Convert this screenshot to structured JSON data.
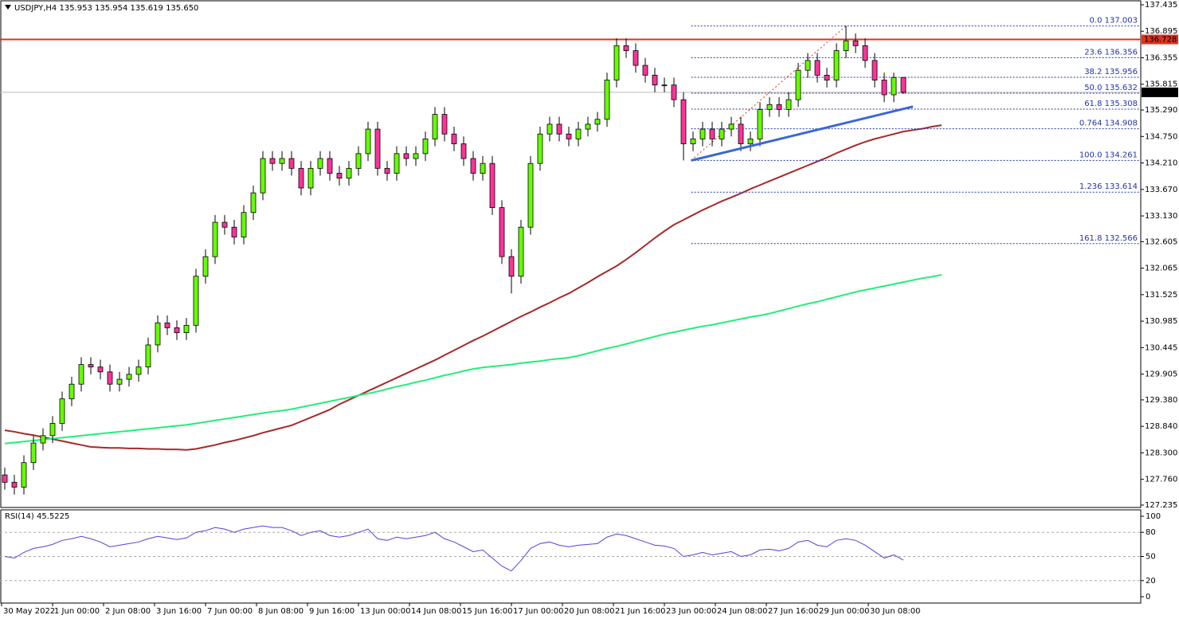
{
  "chart_data": {
    "type": "candlestick",
    "header": "USDJPY,H4  135.953 135.954 135.619 135.650",
    "ylim": [
      127.186,
      137.5
    ],
    "yticks": [
      {
        "value": 137.435,
        "label": "137.435"
      },
      {
        "value": 136.895,
        "label": "136.895"
      },
      {
        "value": 136.355,
        "label": "136.355"
      },
      {
        "value": 135.815,
        "label": "135.815"
      },
      {
        "value": 135.29,
        "label": "135.290"
      },
      {
        "value": 134.75,
        "label": "134.750"
      },
      {
        "value": 134.21,
        "label": "134.210"
      },
      {
        "value": 133.67,
        "label": "133.670"
      },
      {
        "value": 133.13,
        "label": "133.130"
      },
      {
        "value": 132.605,
        "label": "132.605"
      },
      {
        "value": 132.065,
        "label": "132.065"
      },
      {
        "value": 131.525,
        "label": "131.525"
      },
      {
        "value": 130.985,
        "label": "130.985"
      },
      {
        "value": 130.445,
        "label": "130.445"
      },
      {
        "value": 129.905,
        "label": "129.905"
      },
      {
        "value": 129.38,
        "label": "129.380"
      },
      {
        "value": 128.84,
        "label": "128.840"
      },
      {
        "value": 128.3,
        "label": "128.300"
      },
      {
        "value": 127.76,
        "label": "127.760"
      },
      {
        "value": 127.235,
        "label": "127.235"
      }
    ],
    "x_labels": [
      "30 May 2022",
      "1 Jun 00:00",
      "2 Jun 08:00",
      "3 Jun 16:00",
      "7 Jun 00:00",
      "8 Jun 08:00",
      "9 Jun 16:00",
      "13 Jun 00:00",
      "14 Jun 08:00",
      "15 Jun 16:00",
      "17 Jun 00:00",
      "20 Jun 08:00",
      "21 Jun 16:00",
      "23 Jun 00:00",
      "24 Jun 08:00",
      "27 Jun 16:00",
      "29 Jun 00:00",
      "30 Jun 08:00"
    ],
    "up_color": "#66ff00",
    "down_color": "#ff3399",
    "open": [
      127.85,
      127.7,
      127.6,
      128.1,
      128.5,
      128.65,
      128.9,
      129.4,
      129.7,
      130.1,
      130.05,
      129.95,
      129.7,
      129.8,
      129.9,
      130.05,
      130.5,
      130.95,
      130.85,
      130.75,
      130.9,
      131.9,
      132.3,
      133.0,
      132.9,
      132.7,
      133.2,
      133.6,
      134.3,
      134.2,
      134.3,
      134.1,
      133.7,
      134.1,
      134.3,
      134.0,
      133.9,
      134.1,
      134.4,
      134.9,
      134.1,
      134.0,
      134.4,
      134.3,
      134.4,
      134.7,
      135.2,
      134.8,
      134.6,
      134.3,
      134.0,
      134.2,
      133.3,
      132.3,
      131.9,
      132.9,
      134.2,
      134.8,
      135.0,
      134.8,
      134.7,
      134.9,
      135.0,
      135.1,
      135.9,
      136.6,
      136.5,
      136.2,
      136.0,
      135.8,
      135.8,
      135.5,
      134.6,
      134.7,
      134.9,
      134.7,
      134.9,
      135.0,
      134.6,
      134.7,
      135.3,
      135.4,
      135.3,
      135.5,
      136.1,
      136.3,
      136.0,
      135.9,
      136.5,
      136.7,
      136.6,
      136.3,
      135.9,
      135.6,
      135.953
    ],
    "high": [
      128.0,
      127.85,
      128.25,
      128.65,
      128.8,
      129.05,
      129.55,
      129.85,
      130.25,
      130.25,
      130.2,
      130.1,
      129.95,
      130.05,
      130.2,
      130.65,
      131.1,
      131.1,
      131.0,
      131.05,
      132.05,
      132.45,
      133.15,
      133.15,
      133.05,
      133.35,
      133.75,
      134.45,
      134.45,
      134.45,
      134.45,
      134.25,
      134.25,
      134.45,
      134.45,
      134.15,
      134.25,
      134.55,
      135.05,
      135.05,
      134.25,
      134.55,
      134.55,
      134.55,
      134.85,
      135.35,
      135.35,
      134.95,
      134.75,
      134.45,
      134.35,
      134.35,
      133.45,
      132.45,
      133.05,
      134.35,
      134.95,
      135.15,
      135.15,
      134.95,
      135.05,
      135.15,
      135.25,
      136.05,
      136.75,
      136.75,
      136.65,
      136.35,
      136.15,
      135.95,
      135.95,
      135.65,
      134.85,
      135.05,
      135.05,
      135.05,
      135.15,
      135.15,
      134.85,
      135.45,
      135.55,
      135.55,
      135.65,
      136.25,
      136.45,
      136.45,
      136.15,
      136.65,
      137.003,
      136.85,
      136.75,
      136.45,
      136.05,
      136.05,
      135.954
    ],
    "low": [
      127.55,
      127.45,
      127.45,
      127.95,
      128.35,
      128.5,
      128.75,
      129.25,
      129.55,
      129.9,
      129.8,
      129.55,
      129.55,
      129.65,
      129.75,
      129.9,
      130.35,
      130.7,
      130.6,
      130.6,
      130.75,
      131.75,
      132.15,
      132.75,
      132.55,
      132.55,
      133.05,
      133.45,
      134.05,
      134.05,
      133.95,
      133.55,
      133.55,
      133.95,
      133.85,
      133.75,
      133.75,
      133.95,
      134.25,
      133.95,
      133.85,
      133.85,
      134.15,
      134.15,
      134.25,
      134.55,
      134.65,
      134.45,
      134.15,
      133.85,
      133.85,
      133.15,
      132.15,
      131.55,
      131.75,
      132.75,
      134.05,
      134.65,
      134.65,
      134.55,
      134.55,
      134.75,
      134.85,
      134.95,
      135.75,
      136.35,
      136.05,
      135.85,
      135.65,
      135.65,
      135.35,
      134.261,
      134.45,
      134.55,
      134.55,
      134.55,
      134.75,
      134.45,
      134.45,
      134.55,
      135.15,
      135.15,
      135.15,
      135.35,
      135.95,
      135.85,
      135.75,
      135.75,
      136.35,
      136.45,
      136.15,
      135.75,
      135.45,
      135.45,
      135.619
    ],
    "close": [
      127.7,
      127.6,
      128.1,
      128.5,
      128.65,
      128.9,
      129.4,
      129.7,
      130.1,
      130.05,
      129.95,
      129.7,
      129.8,
      129.9,
      130.05,
      130.5,
      130.95,
      130.85,
      130.75,
      130.9,
      131.9,
      132.3,
      133.0,
      132.9,
      132.7,
      133.2,
      133.6,
      134.3,
      134.2,
      134.3,
      134.1,
      133.7,
      134.1,
      134.3,
      134.0,
      133.9,
      134.1,
      134.4,
      134.9,
      134.1,
      134.0,
      134.4,
      134.3,
      134.4,
      134.7,
      135.2,
      134.8,
      134.6,
      134.3,
      134.0,
      134.2,
      133.3,
      132.3,
      131.9,
      132.9,
      134.2,
      134.8,
      135.0,
      134.8,
      134.7,
      134.9,
      135.0,
      135.1,
      135.9,
      136.6,
      136.5,
      136.2,
      136.0,
      135.8,
      135.8,
      135.5,
      134.6,
      134.7,
      134.9,
      134.7,
      134.9,
      135.0,
      134.6,
      134.7,
      135.3,
      135.4,
      135.3,
      135.5,
      136.1,
      136.3,
      136.0,
      135.9,
      136.5,
      136.7,
      136.6,
      136.3,
      135.9,
      135.6,
      135.953,
      135.65
    ],
    "moving_averages": [
      {
        "color": "#a52a2a",
        "values": [
          128.76,
          128.73,
          128.69,
          128.66,
          128.62,
          128.58,
          128.54,
          128.5,
          128.46,
          128.42,
          128.41,
          128.4,
          128.4,
          128.39,
          128.39,
          128.38,
          128.38,
          128.37,
          128.37,
          128.36,
          128.38,
          128.42,
          128.46,
          128.51,
          128.55,
          128.6,
          128.65,
          128.71,
          128.76,
          128.81,
          128.86,
          128.94,
          129.02,
          129.1,
          129.18,
          129.29,
          129.38,
          129.47,
          129.56,
          129.65,
          129.74,
          129.83,
          129.92,
          130.01,
          130.1,
          130.19,
          130.29,
          130.39,
          130.49,
          130.59,
          130.68,
          130.78,
          130.88,
          130.98,
          131.08,
          131.17,
          131.27,
          131.36,
          131.46,
          131.55,
          131.66,
          131.77,
          131.89,
          132.0,
          132.11,
          132.24,
          132.38,
          132.53,
          132.68,
          132.82,
          132.95,
          133.05,
          133.15,
          133.25,
          133.34,
          133.43,
          133.51,
          133.59,
          133.68,
          133.76,
          133.84,
          133.92,
          134.0,
          134.08,
          134.16,
          134.24,
          134.32,
          134.41,
          134.49,
          134.57,
          134.64,
          134.7,
          134.75,
          134.8,
          134.85,
          134.88,
          134.91,
          134.95,
          134.98
        ]
      },
      {
        "color": "#22ee77",
        "values": [
          128.49,
          128.51,
          128.53,
          128.55,
          128.57,
          128.59,
          128.61,
          128.63,
          128.65,
          128.67,
          128.69,
          128.71,
          128.73,
          128.75,
          128.77,
          128.79,
          128.81,
          128.83,
          128.85,
          128.87,
          128.9,
          128.93,
          128.96,
          128.99,
          129.02,
          129.05,
          129.08,
          129.11,
          129.14,
          129.16,
          129.19,
          129.23,
          129.27,
          129.31,
          129.35,
          129.39,
          129.43,
          129.47,
          129.51,
          129.55,
          129.6,
          129.65,
          129.69,
          129.74,
          129.78,
          129.83,
          129.88,
          129.92,
          129.97,
          130.01,
          130.04,
          130.06,
          130.08,
          130.1,
          130.13,
          130.15,
          130.17,
          130.2,
          130.22,
          130.24,
          130.28,
          130.33,
          130.38,
          130.43,
          130.47,
          130.52,
          130.57,
          130.62,
          130.67,
          130.72,
          130.76,
          130.8,
          130.84,
          130.88,
          130.91,
          130.95,
          130.99,
          131.03,
          131.07,
          131.1,
          131.14,
          131.19,
          131.24,
          131.29,
          131.34,
          131.38,
          131.43,
          131.48,
          131.53,
          131.58,
          131.62,
          131.66,
          131.7,
          131.74,
          131.78,
          131.82,
          131.86,
          131.89,
          131.93
        ]
      }
    ],
    "fibonacci": [
      {
        "level": "0.0",
        "price": 137.003
      },
      {
        "level": "23.6",
        "price": 136.356
      },
      {
        "level": "38.2",
        "price": 135.956
      },
      {
        "level": "50.0",
        "price": 135.632
      },
      {
        "level": "61.8",
        "price": 135.308
      },
      {
        "level": "0.764",
        "price": 134.908
      },
      {
        "level": "100.0",
        "price": 134.261
      },
      {
        "level": "1.236",
        "price": 133.614
      },
      {
        "level": "161.8",
        "price": 132.566
      }
    ],
    "resistance": {
      "value": 136.728,
      "label": "136.728",
      "color": "#e0301e"
    },
    "last_price": {
      "value": 135.65,
      "label": "135.650"
    },
    "trendline": {
      "values": [
        134.26,
        135.36
      ],
      "color": "#3a66d6"
    },
    "rsi": {
      "title": "RSI(14) 45.5225",
      "color": "#5b3fd6",
      "ylim": [
        0,
        100
      ],
      "yticks": [
        0,
        20,
        50,
        80,
        100
      ],
      "levels": [
        20,
        50,
        80
      ],
      "values": [
        50,
        48,
        55,
        60,
        62,
        65,
        70,
        72,
        75,
        72,
        68,
        62,
        64,
        66,
        68,
        72,
        75,
        73,
        71,
        73,
        80,
        82,
        86,
        84,
        80,
        84,
        86,
        88,
        86,
        86,
        82,
        76,
        80,
        82,
        76,
        74,
        76,
        80,
        84,
        72,
        70,
        74,
        72,
        74,
        76,
        80,
        72,
        68,
        62,
        56,
        58,
        48,
        38,
        32,
        45,
        60,
        66,
        68,
        64,
        62,
        64,
        65,
        66,
        74,
        78,
        76,
        72,
        68,
        64,
        63,
        60,
        50,
        52,
        55,
        52,
        54,
        56,
        50,
        52,
        58,
        59,
        57,
        60,
        68,
        70,
        64,
        62,
        70,
        72,
        70,
        64,
        56,
        48,
        52,
        45.5225
      ]
    }
  }
}
